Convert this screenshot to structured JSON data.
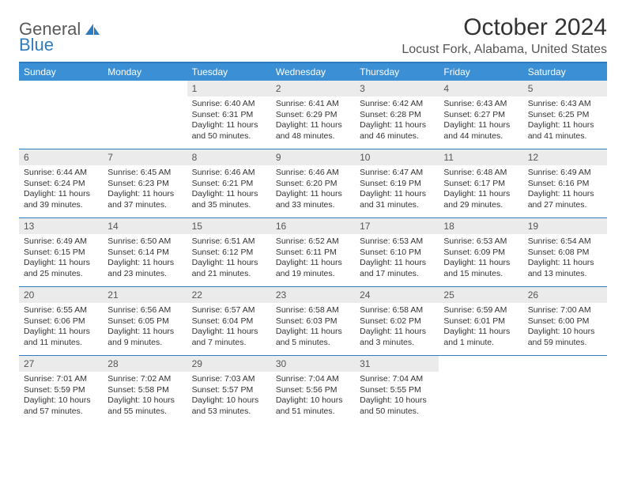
{
  "logo": {
    "part1": "General",
    "part2": "Blue"
  },
  "title": "October 2024",
  "location": "Locust Fork, Alabama, United States",
  "days_of_week": [
    "Sunday",
    "Monday",
    "Tuesday",
    "Wednesday",
    "Thursday",
    "Friday",
    "Saturday"
  ],
  "colors": {
    "header_bg": "#3b8fd4",
    "border": "#2f7bbf",
    "daynum_bg": "#ebebeb",
    "text": "#333333"
  },
  "weeks": [
    [
      {
        "n": "",
        "sunrise": "",
        "sunset": "",
        "daylight": ""
      },
      {
        "n": "",
        "sunrise": "",
        "sunset": "",
        "daylight": ""
      },
      {
        "n": "1",
        "sunrise": "Sunrise: 6:40 AM",
        "sunset": "Sunset: 6:31 PM",
        "daylight": "Daylight: 11 hours and 50 minutes."
      },
      {
        "n": "2",
        "sunrise": "Sunrise: 6:41 AM",
        "sunset": "Sunset: 6:29 PM",
        "daylight": "Daylight: 11 hours and 48 minutes."
      },
      {
        "n": "3",
        "sunrise": "Sunrise: 6:42 AM",
        "sunset": "Sunset: 6:28 PM",
        "daylight": "Daylight: 11 hours and 46 minutes."
      },
      {
        "n": "4",
        "sunrise": "Sunrise: 6:43 AM",
        "sunset": "Sunset: 6:27 PM",
        "daylight": "Daylight: 11 hours and 44 minutes."
      },
      {
        "n": "5",
        "sunrise": "Sunrise: 6:43 AM",
        "sunset": "Sunset: 6:25 PM",
        "daylight": "Daylight: 11 hours and 41 minutes."
      }
    ],
    [
      {
        "n": "6",
        "sunrise": "Sunrise: 6:44 AM",
        "sunset": "Sunset: 6:24 PM",
        "daylight": "Daylight: 11 hours and 39 minutes."
      },
      {
        "n": "7",
        "sunrise": "Sunrise: 6:45 AM",
        "sunset": "Sunset: 6:23 PM",
        "daylight": "Daylight: 11 hours and 37 minutes."
      },
      {
        "n": "8",
        "sunrise": "Sunrise: 6:46 AM",
        "sunset": "Sunset: 6:21 PM",
        "daylight": "Daylight: 11 hours and 35 minutes."
      },
      {
        "n": "9",
        "sunrise": "Sunrise: 6:46 AM",
        "sunset": "Sunset: 6:20 PM",
        "daylight": "Daylight: 11 hours and 33 minutes."
      },
      {
        "n": "10",
        "sunrise": "Sunrise: 6:47 AM",
        "sunset": "Sunset: 6:19 PM",
        "daylight": "Daylight: 11 hours and 31 minutes."
      },
      {
        "n": "11",
        "sunrise": "Sunrise: 6:48 AM",
        "sunset": "Sunset: 6:17 PM",
        "daylight": "Daylight: 11 hours and 29 minutes."
      },
      {
        "n": "12",
        "sunrise": "Sunrise: 6:49 AM",
        "sunset": "Sunset: 6:16 PM",
        "daylight": "Daylight: 11 hours and 27 minutes."
      }
    ],
    [
      {
        "n": "13",
        "sunrise": "Sunrise: 6:49 AM",
        "sunset": "Sunset: 6:15 PM",
        "daylight": "Daylight: 11 hours and 25 minutes."
      },
      {
        "n": "14",
        "sunrise": "Sunrise: 6:50 AM",
        "sunset": "Sunset: 6:14 PM",
        "daylight": "Daylight: 11 hours and 23 minutes."
      },
      {
        "n": "15",
        "sunrise": "Sunrise: 6:51 AM",
        "sunset": "Sunset: 6:12 PM",
        "daylight": "Daylight: 11 hours and 21 minutes."
      },
      {
        "n": "16",
        "sunrise": "Sunrise: 6:52 AM",
        "sunset": "Sunset: 6:11 PM",
        "daylight": "Daylight: 11 hours and 19 minutes."
      },
      {
        "n": "17",
        "sunrise": "Sunrise: 6:53 AM",
        "sunset": "Sunset: 6:10 PM",
        "daylight": "Daylight: 11 hours and 17 minutes."
      },
      {
        "n": "18",
        "sunrise": "Sunrise: 6:53 AM",
        "sunset": "Sunset: 6:09 PM",
        "daylight": "Daylight: 11 hours and 15 minutes."
      },
      {
        "n": "19",
        "sunrise": "Sunrise: 6:54 AM",
        "sunset": "Sunset: 6:08 PM",
        "daylight": "Daylight: 11 hours and 13 minutes."
      }
    ],
    [
      {
        "n": "20",
        "sunrise": "Sunrise: 6:55 AM",
        "sunset": "Sunset: 6:06 PM",
        "daylight": "Daylight: 11 hours and 11 minutes."
      },
      {
        "n": "21",
        "sunrise": "Sunrise: 6:56 AM",
        "sunset": "Sunset: 6:05 PM",
        "daylight": "Daylight: 11 hours and 9 minutes."
      },
      {
        "n": "22",
        "sunrise": "Sunrise: 6:57 AM",
        "sunset": "Sunset: 6:04 PM",
        "daylight": "Daylight: 11 hours and 7 minutes."
      },
      {
        "n": "23",
        "sunrise": "Sunrise: 6:58 AM",
        "sunset": "Sunset: 6:03 PM",
        "daylight": "Daylight: 11 hours and 5 minutes."
      },
      {
        "n": "24",
        "sunrise": "Sunrise: 6:58 AM",
        "sunset": "Sunset: 6:02 PM",
        "daylight": "Daylight: 11 hours and 3 minutes."
      },
      {
        "n": "25",
        "sunrise": "Sunrise: 6:59 AM",
        "sunset": "Sunset: 6:01 PM",
        "daylight": "Daylight: 11 hours and 1 minute."
      },
      {
        "n": "26",
        "sunrise": "Sunrise: 7:00 AM",
        "sunset": "Sunset: 6:00 PM",
        "daylight": "Daylight: 10 hours and 59 minutes."
      }
    ],
    [
      {
        "n": "27",
        "sunrise": "Sunrise: 7:01 AM",
        "sunset": "Sunset: 5:59 PM",
        "daylight": "Daylight: 10 hours and 57 minutes."
      },
      {
        "n": "28",
        "sunrise": "Sunrise: 7:02 AM",
        "sunset": "Sunset: 5:58 PM",
        "daylight": "Daylight: 10 hours and 55 minutes."
      },
      {
        "n": "29",
        "sunrise": "Sunrise: 7:03 AM",
        "sunset": "Sunset: 5:57 PM",
        "daylight": "Daylight: 10 hours and 53 minutes."
      },
      {
        "n": "30",
        "sunrise": "Sunrise: 7:04 AM",
        "sunset": "Sunset: 5:56 PM",
        "daylight": "Daylight: 10 hours and 51 minutes."
      },
      {
        "n": "31",
        "sunrise": "Sunrise: 7:04 AM",
        "sunset": "Sunset: 5:55 PM",
        "daylight": "Daylight: 10 hours and 50 minutes."
      },
      {
        "n": "",
        "sunrise": "",
        "sunset": "",
        "daylight": ""
      },
      {
        "n": "",
        "sunrise": "",
        "sunset": "",
        "daylight": ""
      }
    ]
  ]
}
